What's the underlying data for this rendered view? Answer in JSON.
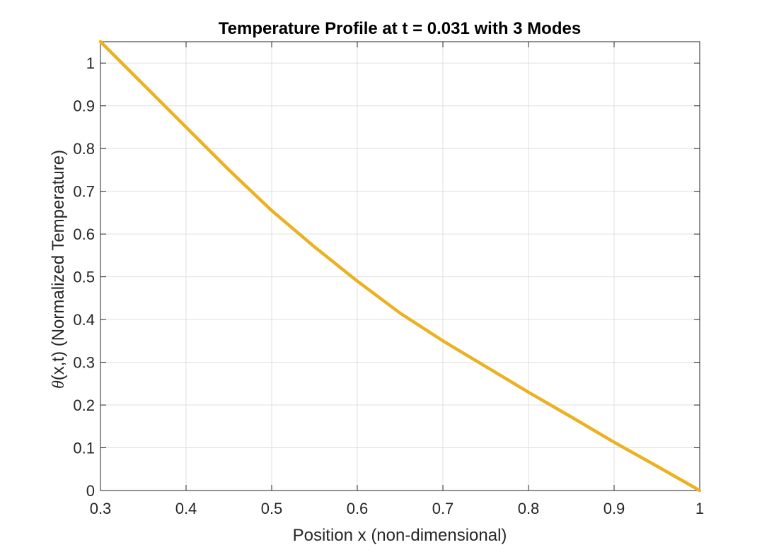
{
  "chart_data": {
    "type": "line",
    "title": "Temperature Profile at t = 0.031 with 3 Modes",
    "xlabel": "Position x (non-dimensional)",
    "ylabel_symbol": "θ",
    "ylabel_rest": "(x,t) (Normalized Temperature)",
    "xlim": [
      0.3,
      1.0
    ],
    "ylim": [
      0,
      1.05
    ],
    "x_ticks": [
      "0.3",
      "0.4",
      "0.5",
      "0.6",
      "0.7",
      "0.8",
      "0.9",
      "1"
    ],
    "y_ticks": [
      "0",
      "0.1",
      "0.2",
      "0.3",
      "0.4",
      "0.5",
      "0.6",
      "0.7",
      "0.8",
      "0.9",
      "1"
    ],
    "grid": true,
    "series": [
      {
        "color": "#EDB120",
        "x": [
          0.3,
          0.35,
          0.4,
          0.45,
          0.5,
          0.55,
          0.6,
          0.65,
          0.7,
          0.75,
          0.8,
          0.85,
          0.9,
          0.95,
          1.0
        ],
        "y": [
          1.05,
          0.95,
          0.85,
          0.75,
          0.655,
          0.57,
          0.49,
          0.415,
          0.35,
          0.29,
          0.23,
          0.172,
          0.113,
          0.057,
          0.0
        ]
      }
    ]
  }
}
